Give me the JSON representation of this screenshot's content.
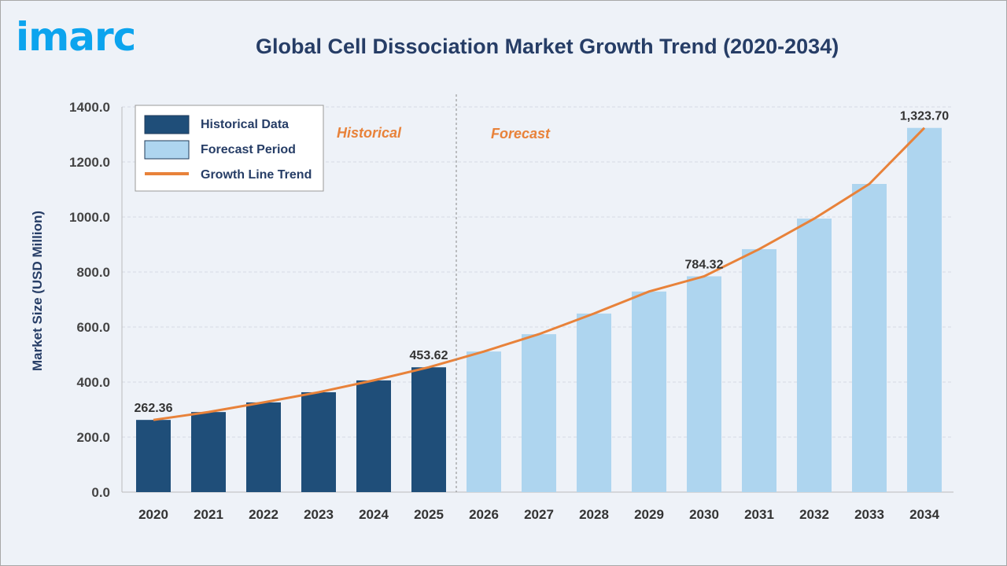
{
  "logo_text": "imarc",
  "chart_data": {
    "type": "bar",
    "title": "Global Cell Dissociation Market Growth Trend (2020-2034)",
    "xlabel": "",
    "ylabel": "Market Size (USD Million)",
    "ylim": [
      0,
      1400
    ],
    "yticks": [
      "0.0",
      "200.0",
      "400.0",
      "600.0",
      "800.0",
      "1000.0",
      "1200.0",
      "1400.0"
    ],
    "grid": true,
    "legend_position": "top-left",
    "categories": [
      "2020",
      "2021",
      "2022",
      "2023",
      "2024",
      "2025",
      "2026",
      "2027",
      "2028",
      "2029",
      "2030",
      "2031",
      "2032",
      "2033",
      "2034"
    ],
    "series": [
      {
        "name": "Historical Data",
        "color": "#1f4e79",
        "values": [
          262.36,
          291,
          326,
          363,
          406,
          453.62,
          null,
          null,
          null,
          null,
          null,
          null,
          null,
          null,
          null
        ]
      },
      {
        "name": "Forecast Period",
        "color": "#aed5ef",
        "values": [
          null,
          null,
          null,
          null,
          null,
          null,
          511,
          574,
          649,
          729,
          784.32,
          883,
          994,
          1120,
          1323.7
        ]
      },
      {
        "name": "Growth Line Trend",
        "type": "line",
        "color": "#e8823a",
        "values": [
          262.36,
          291,
          326,
          363,
          406,
          453.62,
          511,
          574,
          649,
          729,
          784.32,
          883,
          994,
          1120,
          1323.7
        ]
      }
    ],
    "data_labels": [
      {
        "category": "2020",
        "text": "262.36"
      },
      {
        "category": "2025",
        "text": "453.62"
      },
      {
        "category": "2030",
        "text": "784.32"
      },
      {
        "category": "2034",
        "text": "1,323.70"
      }
    ],
    "annotations": {
      "historical": "Historical",
      "forecast": "Forecast",
      "divider_between": [
        "2025",
        "2026"
      ]
    }
  }
}
